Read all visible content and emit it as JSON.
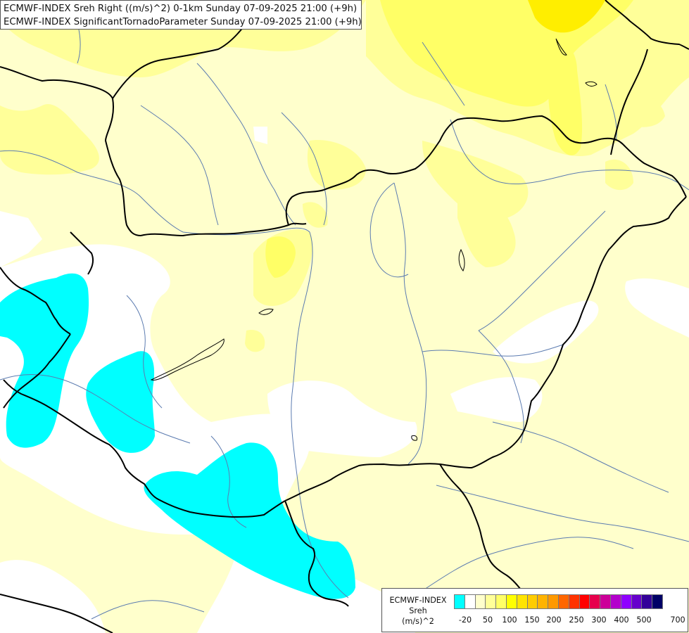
{
  "header": {
    "line1": "ECMWF-INDEX Sreh Right ((m/s)^2) 0-1km Sunday 07-09-2025 21:00 (+9h)",
    "line2": "ECMWF-INDEX SignificantTornadoParameter Sunday 07-09-2025 21:00 (+9h)"
  },
  "legend": {
    "title_lines": [
      "ECMWF-INDEX",
      "Sreh",
      "(m/s)^2"
    ],
    "colors": [
      "#00ffff",
      "#ffffff",
      "#ffffcc",
      "#ffff99",
      "#ffff66",
      "#ffff00",
      "#ffe400",
      "#ffcc00",
      "#ffb300",
      "#ff9900",
      "#ff6600",
      "#ff3300",
      "#ff0000",
      "#e6004c",
      "#cc0099",
      "#b300cc",
      "#8f00ff",
      "#6600cc",
      "#330099",
      "#000066"
    ],
    "tick_labels": [
      "-20",
      "50",
      "100",
      "150",
      "200",
      "250",
      "300",
      "400",
      "500",
      "700"
    ]
  },
  "colors": {
    "shading_light": "#ffffcc",
    "shading_medium": "#ffff99",
    "shading_strong": "#ffff66",
    "shading_stronger": "#ffee00",
    "shading_negative": "#00ffff",
    "river": "#5b7bb0",
    "border": "#000000"
  }
}
